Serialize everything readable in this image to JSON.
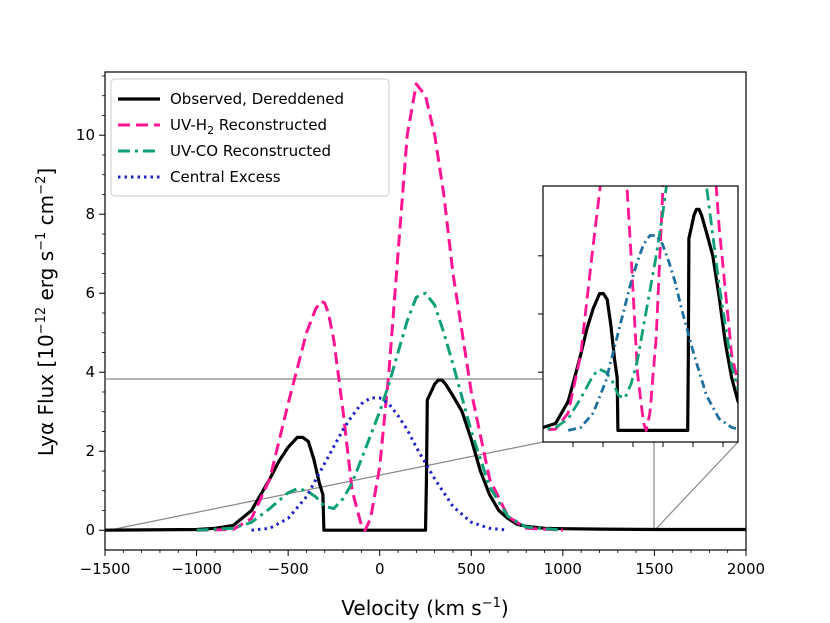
{
  "chart_data": {
    "type": "line",
    "xlabel": "Velocity (km s",
    "xlabel_sup": "−1",
    "xlabel_end": ")",
    "ylabel": "Lyα Flux [10",
    "ylabel_sup1": "−12",
    "ylabel_mid": " erg s",
    "ylabel_sup2": "−1",
    "ylabel_mid2": " cm",
    "ylabel_sup3": "−2",
    "ylabel_end": "]",
    "xlim": [
      -1500,
      2000
    ],
    "ylim": [
      -0.5,
      11.6
    ],
    "x_ticks": [
      -1500,
      -1000,
      -500,
      0,
      500,
      1000,
      1500,
      2000
    ],
    "x_tick_labels": [
      "−1500",
      "−1000",
      "−500",
      "0",
      "500",
      "1000",
      "1500",
      "2000"
    ],
    "y_ticks": [
      0,
      2,
      4,
      6,
      8,
      10
    ],
    "y_tick_labels": [
      "0",
      "2",
      "4",
      "6",
      "8",
      "10"
    ],
    "legend_position": "top-left",
    "series": [
      {
        "name": "Observed, Dereddened",
        "style": "solid",
        "color": "#000000",
        "x": [
          -1500,
          -1000,
          -900,
          -800,
          -700,
          -650,
          -600,
          -550,
          -500,
          -450,
          -420,
          -390,
          -360,
          -330,
          -310,
          -305,
          -300,
          -200,
          -100,
          0,
          100,
          200,
          250,
          255,
          260,
          280,
          300,
          320,
          340,
          360,
          380,
          400,
          450,
          500,
          550,
          600,
          650,
          700,
          750,
          800,
          900,
          1000,
          1200,
          1500,
          2000
        ],
        "y": [
          0,
          0.02,
          0.05,
          0.12,
          0.5,
          0.9,
          1.3,
          1.75,
          2.1,
          2.35,
          2.35,
          2.25,
          1.8,
          1.2,
          0.9,
          0,
          0,
          0,
          0,
          0,
          0,
          0,
          0,
          1.2,
          3.3,
          3.5,
          3.7,
          3.8,
          3.8,
          3.7,
          3.55,
          3.4,
          3.0,
          2.3,
          1.5,
          0.9,
          0.5,
          0.3,
          0.15,
          0.1,
          0.05,
          0.04,
          0.03,
          0.02,
          0.02
        ]
      },
      {
        "name": "UV-H₂ Reconstructed",
        "style": "dashed",
        "color": "#ff1493",
        "x": [
          -1000,
          -800,
          -700,
          -600,
          -500,
          -400,
          -350,
          -320,
          -300,
          -280,
          -250,
          -200,
          -150,
          -100,
          -80,
          -50,
          0,
          50,
          100,
          150,
          200,
          250,
          300,
          350,
          400,
          500,
          600,
          700,
          800,
          1000
        ],
        "y": [
          0,
          0.02,
          0.3,
          1.3,
          3.2,
          5.0,
          5.6,
          5.8,
          5.75,
          5.5,
          4.8,
          3.0,
          1.0,
          0.12,
          0,
          0.3,
          1.6,
          4.0,
          7.0,
          10.0,
          11.3,
          11.0,
          10.0,
          8.5,
          6.5,
          3.5,
          1.3,
          0.35,
          0.05,
          0
        ]
      },
      {
        "name": "UV-CO Reconstructed",
        "style": "dashdot",
        "color": "#10a078",
        "x": [
          -1000,
          -800,
          -700,
          -600,
          -500,
          -450,
          -400,
          -350,
          -300,
          -250,
          -200,
          -150,
          -100,
          -50,
          0,
          50,
          100,
          150,
          200,
          250,
          300,
          350,
          400,
          500,
          600,
          700,
          800,
          1000
        ],
        "y": [
          0,
          0.05,
          0.2,
          0.55,
          0.95,
          1.05,
          1.0,
          0.85,
          0.6,
          0.55,
          0.8,
          1.2,
          1.8,
          2.4,
          3.0,
          3.7,
          4.5,
          5.3,
          5.9,
          6.0,
          5.7,
          5.0,
          4.2,
          2.5,
          1.1,
          0.35,
          0.08,
          0
        ]
      },
      {
        "name": "Central Excess",
        "style": "dotted",
        "color": "#2020c8",
        "x": [
          -700,
          -600,
          -500,
          -400,
          -300,
          -200,
          -150,
          -100,
          -50,
          0,
          50,
          100,
          150,
          200,
          300,
          400,
          500,
          600,
          700
        ],
        "y": [
          0,
          0.05,
          0.3,
          0.85,
          1.7,
          2.55,
          2.9,
          3.2,
          3.35,
          3.35,
          3.2,
          2.9,
          2.55,
          2.1,
          1.3,
          0.6,
          0.2,
          0.05,
          0
        ]
      }
    ],
    "legend": [
      {
        "label": "Observed, Dereddened",
        "style": "solid",
        "color": "#000000"
      },
      {
        "label": "UV-H",
        "sub": "2",
        "label_end": " Reconstructed",
        "style": "dashed",
        "color": "#ff1493"
      },
      {
        "label": "UV-CO Reconstructed",
        "style": "dashdot",
        "color": "#10a078"
      },
      {
        "label": "Central Excess",
        "style": "dotted",
        "color": "#2020c8"
      }
    ],
    "inset": {
      "type": "line",
      "description": "zoomed view of the same four curves near the Lyα core",
      "y_range_hint": [
        0,
        4
      ],
      "x_range_hint": [
        -1500,
        1500
      ]
    }
  }
}
